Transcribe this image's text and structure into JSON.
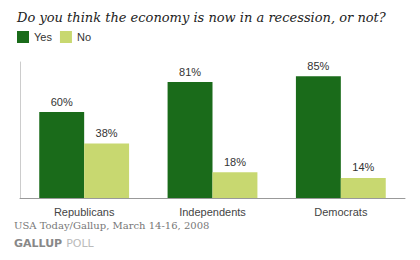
{
  "chart_data": {
    "type": "bar",
    "title": "Do you think the economy is now in a recession, or not?",
    "categories": [
      "Republicans",
      "Independents",
      "Democrats"
    ],
    "series": [
      {
        "name": "Yes",
        "color": "#1a6b1a",
        "values": [
          60,
          81,
          85
        ],
        "value_labels": [
          "60%",
          "81%",
          "85%"
        ]
      },
      {
        "name": "No",
        "color": "#c8d870",
        "values": [
          38,
          18,
          14
        ],
        "value_labels": [
          "38%",
          "18%",
          "14%"
        ]
      }
    ],
    "ylim": [
      0,
      95
    ],
    "grid": false,
    "legend": "upper left",
    "data_labels": true,
    "tick_labels": "x",
    "annotations": [
      "USA Today/Gallup, March 14-16, 2008",
      "GALLUP",
      "POLL"
    ]
  }
}
